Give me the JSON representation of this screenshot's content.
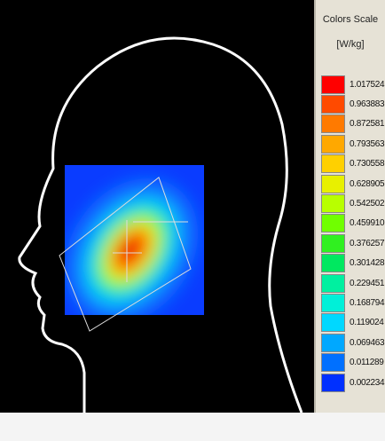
{
  "scale": {
    "title": "Colors Scale",
    "unit": "[W/kg]",
    "levels": [
      {
        "label": "1.017524",
        "color": "#ff0000"
      },
      {
        "label": "0.963883",
        "color": "#ff4a00"
      },
      {
        "label": "0.872581",
        "color": "#ff7a00"
      },
      {
        "label": "0.793563",
        "color": "#ffa800"
      },
      {
        "label": "0.730558",
        "color": "#ffd000"
      },
      {
        "label": "0.628905",
        "color": "#e8f000"
      },
      {
        "label": "0.542502",
        "color": "#b8ff00"
      },
      {
        "label": "0.459910",
        "color": "#70ff00"
      },
      {
        "label": "0.376257",
        "color": "#30f020"
      },
      {
        "label": "0.301428",
        "color": "#00e860"
      },
      {
        "label": "0.229451",
        "color": "#00f0a0"
      },
      {
        "label": "0.168794",
        "color": "#00f0d8"
      },
      {
        "label": "0.119024",
        "color": "#00d8ff"
      },
      {
        "label": "0.069463",
        "color": "#00a8ff"
      },
      {
        "label": "0.011289",
        "color": "#0070ff"
      },
      {
        "label": "0.002234",
        "color": "#0030ff"
      }
    ]
  }
}
